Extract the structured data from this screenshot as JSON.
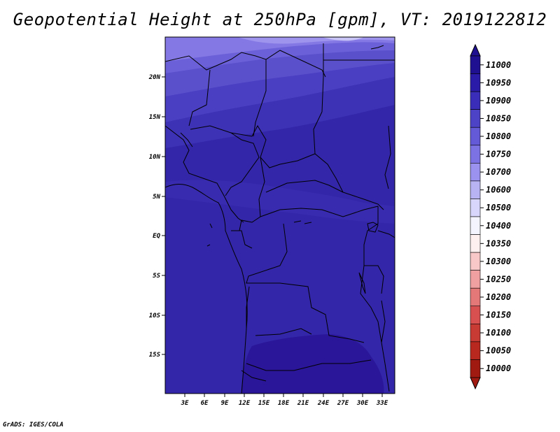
{
  "title": "Geopotential Height at 250hPa [gpm], VT: 2019122812",
  "credit": "GrADS: IGES/COLA",
  "map": {
    "lon_labels": [
      "3E",
      "6E",
      "9E",
      "12E",
      "15E",
      "18E",
      "21E",
      "24E",
      "27E",
      "30E",
      "33E"
    ],
    "lat_labels": [
      "20N",
      "15N",
      "10N",
      "5N",
      "EQ",
      "5S",
      "10S",
      "15S"
    ]
  },
  "colorbar": {
    "levels": [
      "11000",
      "10950",
      "10900",
      "10850",
      "10800",
      "10750",
      "10700",
      "10600",
      "10500",
      "10400",
      "10350",
      "10300",
      "10250",
      "10200",
      "10150",
      "10100",
      "10050",
      "10000"
    ],
    "colors": [
      "#1e1090",
      "#2a1ca8",
      "#3a2dba",
      "#4d43c6",
      "#6459d6",
      "#7d72e4",
      "#9a92ee",
      "#b8b4f4",
      "#d8d6fa",
      "#f4f4ff",
      "#fff0f0",
      "#f8c8c8",
      "#f0a0a0",
      "#e47878",
      "#d85050",
      "#c83a34",
      "#b8281e",
      "#a01a12"
    ]
  }
}
